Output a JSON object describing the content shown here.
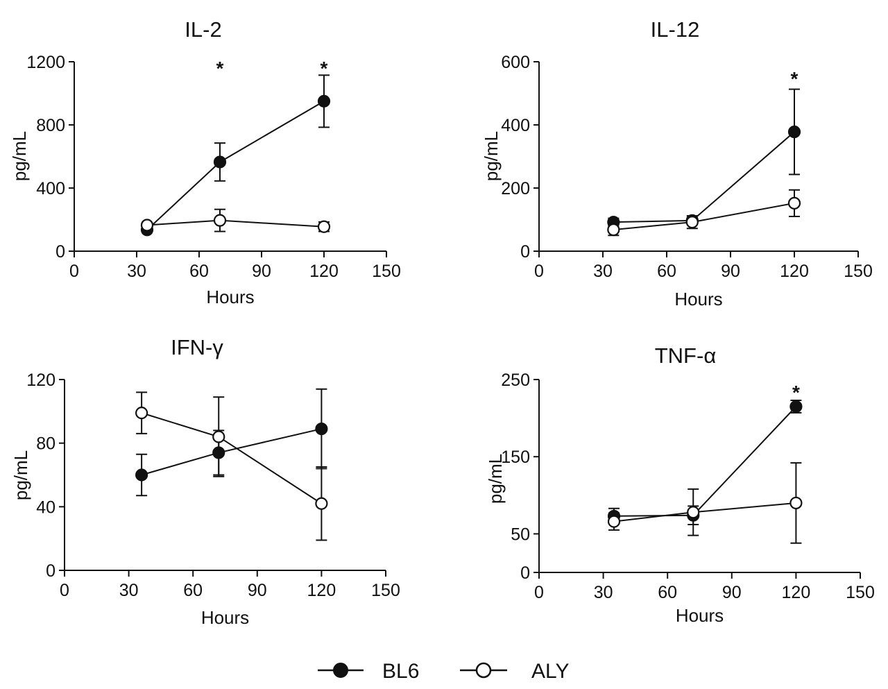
{
  "chart_data": [
    {
      "type": "line",
      "title": "IL-2",
      "xlabel": "Hours",
      "ylabel": "pg/mL",
      "xlim": [
        0,
        150
      ],
      "ylim": [
        0,
        1200
      ],
      "xticks": [
        "0",
        "30",
        "60",
        "90",
        "120",
        "150"
      ],
      "yticks": [
        "0",
        "400",
        "800",
        "1200"
      ],
      "x": [
        35,
        70,
        120
      ],
      "series": [
        {
          "name": "BL6",
          "values": [
            135,
            565,
            950
          ],
          "errors": [
            0,
            120,
            165
          ]
        },
        {
          "name": "ALY",
          "values": [
            165,
            195,
            155
          ],
          "errors": [
            0,
            70,
            30
          ]
        }
      ],
      "significance": [
        {
          "x": 70,
          "label": "*"
        },
        {
          "x": 120,
          "label": "*"
        }
      ]
    },
    {
      "type": "line",
      "title": "IL-12",
      "xlabel": "Hours",
      "ylabel": "pg/mL",
      "xlim": [
        0,
        150
      ],
      "ylim": [
        0,
        600
      ],
      "xticks": [
        "0",
        "30",
        "60",
        "90",
        "120",
        "150"
      ],
      "yticks": [
        "0",
        "200",
        "400",
        "600"
      ],
      "x": [
        35,
        72,
        120
      ],
      "series": [
        {
          "name": "BL6",
          "values": [
            92,
            97,
            378
          ],
          "errors": [
            12,
            10,
            135
          ]
        },
        {
          "name": "ALY",
          "values": [
            68,
            92,
            152
          ],
          "errors": [
            18,
            20,
            42
          ]
        }
      ],
      "significance": [
        {
          "x": 120,
          "label": "*"
        }
      ]
    },
    {
      "type": "line",
      "title": "IFN-γ",
      "xlabel": "Hours",
      "ylabel": "pg/mL",
      "xlim": [
        0,
        150
      ],
      "ylim": [
        0,
        120
      ],
      "xticks": [
        "0",
        "30",
        "60",
        "90",
        "120",
        "150"
      ],
      "yticks": [
        "0",
        "40",
        "80",
        "120"
      ],
      "x": [
        36,
        72,
        120
      ],
      "series": [
        {
          "name": "BL6",
          "values": [
            60,
            74,
            89
          ],
          "errors": [
            13,
            14,
            25
          ]
        },
        {
          "name": "ALY",
          "values": [
            99,
            84,
            42
          ],
          "errors": [
            13,
            25,
            23
          ]
        }
      ],
      "significance": []
    },
    {
      "type": "line",
      "title": "TNF-α",
      "xlabel": "Hours",
      "ylabel": "pg/mL",
      "xlim": [
        0,
        150
      ],
      "ylim": [
        0,
        250
      ],
      "xticks": [
        "0",
        "30",
        "60",
        "90",
        "120",
        "150"
      ],
      "yticks": [
        "0",
        "50",
        "150",
        "250"
      ],
      "x": [
        35,
        72,
        120
      ],
      "series": [
        {
          "name": "BL6",
          "values": [
            73,
            74,
            215
          ],
          "errors": [
            10,
            12,
            8
          ]
        },
        {
          "name": "ALY",
          "values": [
            66,
            78,
            90
          ],
          "errors": [
            11,
            30,
            52
          ]
        }
      ],
      "significance": [
        {
          "x": 120,
          "label": "*"
        }
      ]
    }
  ],
  "legend": {
    "items": [
      {
        "label": "BL6",
        "marker": "filled-circle"
      },
      {
        "label": "ALY",
        "marker": "open-circle"
      }
    ]
  },
  "colors": {
    "ink": "#111111",
    "background": "#ffffff"
  }
}
